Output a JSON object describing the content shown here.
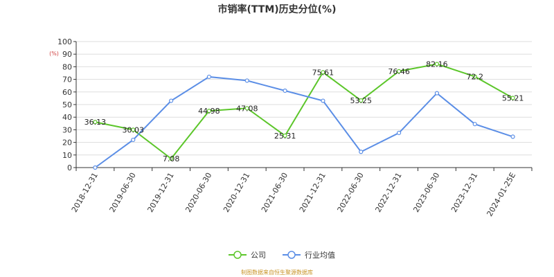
{
  "chart_data": {
    "type": "line",
    "title": "市销率(TTM)历史分位(%)",
    "unit_label": "(%)",
    "categories": [
      "2018-12-31",
      "2019-06-30",
      "2019-12-31",
      "2020-06-30",
      "2020-12-31",
      "2021-06-30",
      "2021-12-31",
      "2022-06-30",
      "2022-12-31",
      "2023-06-30",
      "2023-12-31",
      "2024-01-25E"
    ],
    "ylim": [
      0,
      100
    ],
    "yticks": [
      0,
      10,
      20,
      30,
      40,
      50,
      60,
      70,
      80,
      90,
      100
    ],
    "grid": true,
    "legend_position": "bottom",
    "series": [
      {
        "name": "公司",
        "color": "#5cc62a",
        "values": [
          36.13,
          30.03,
          7.08,
          44.98,
          47.08,
          25.31,
          75.61,
          53.25,
          76.46,
          82.16,
          72.2,
          55.21
        ],
        "labels": [
          "36.13",
          "30.03",
          "7.08",
          "44.98",
          "47.08",
          "25.31",
          "75.61",
          "53.25",
          "76.46",
          "82.16",
          "72.2",
          "55.21"
        ]
      },
      {
        "name": "行业均值",
        "color": "#5b8ee6",
        "values": [
          0,
          22,
          53,
          72,
          69,
          61,
          53,
          12.5,
          27.5,
          59,
          34.5,
          24.5
        ]
      }
    ]
  },
  "footer": {
    "source_text": "制图数据来自恒生聚源数据库"
  },
  "colors": {
    "grid": "#dddddd",
    "axis": "#333333"
  }
}
